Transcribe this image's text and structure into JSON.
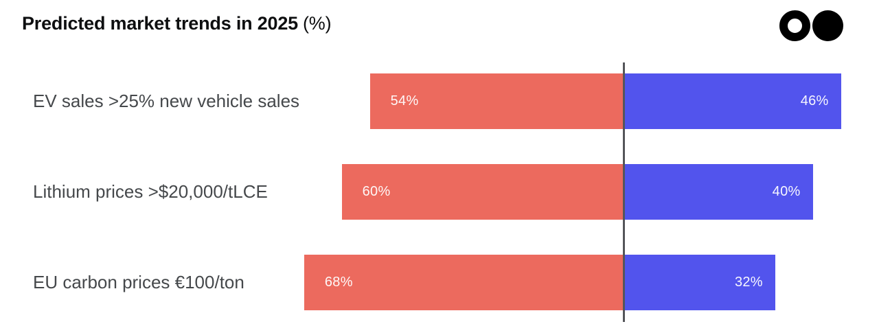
{
  "header": {
    "title_bold": "Predicted market trends in 2025",
    "title_suffix": "(%)",
    "logo_color": "#000000",
    "logo_icons": [
      "ring-circle",
      "filled-circle"
    ]
  },
  "chart_data": {
    "type": "bar",
    "orientation": "horizontal-diverging",
    "title": "Predicted market trends in 2025 (%)",
    "categories": [
      "EV sales >25% new vehicle sales",
      "Lithium prices >$20,000/tLCE",
      "EU carbon prices €100/ton"
    ],
    "series": [
      {
        "name": "left",
        "color": "#EC6A5E",
        "values": [
          54,
          60,
          68
        ]
      },
      {
        "name": "right",
        "color": "#5254ED",
        "values": [
          46,
          40,
          32
        ]
      }
    ],
    "value_suffix": "%",
    "value_labels": {
      "left": [
        "54%",
        "60%",
        "68%"
      ],
      "right": [
        "46%",
        "40%",
        "32%"
      ]
    },
    "axis_range": [
      0,
      100
    ],
    "grid": false,
    "legend": false,
    "divider_line": true,
    "divider_color": "#545559",
    "label_color": "#45484b",
    "value_text_color": "#ffffff"
  }
}
